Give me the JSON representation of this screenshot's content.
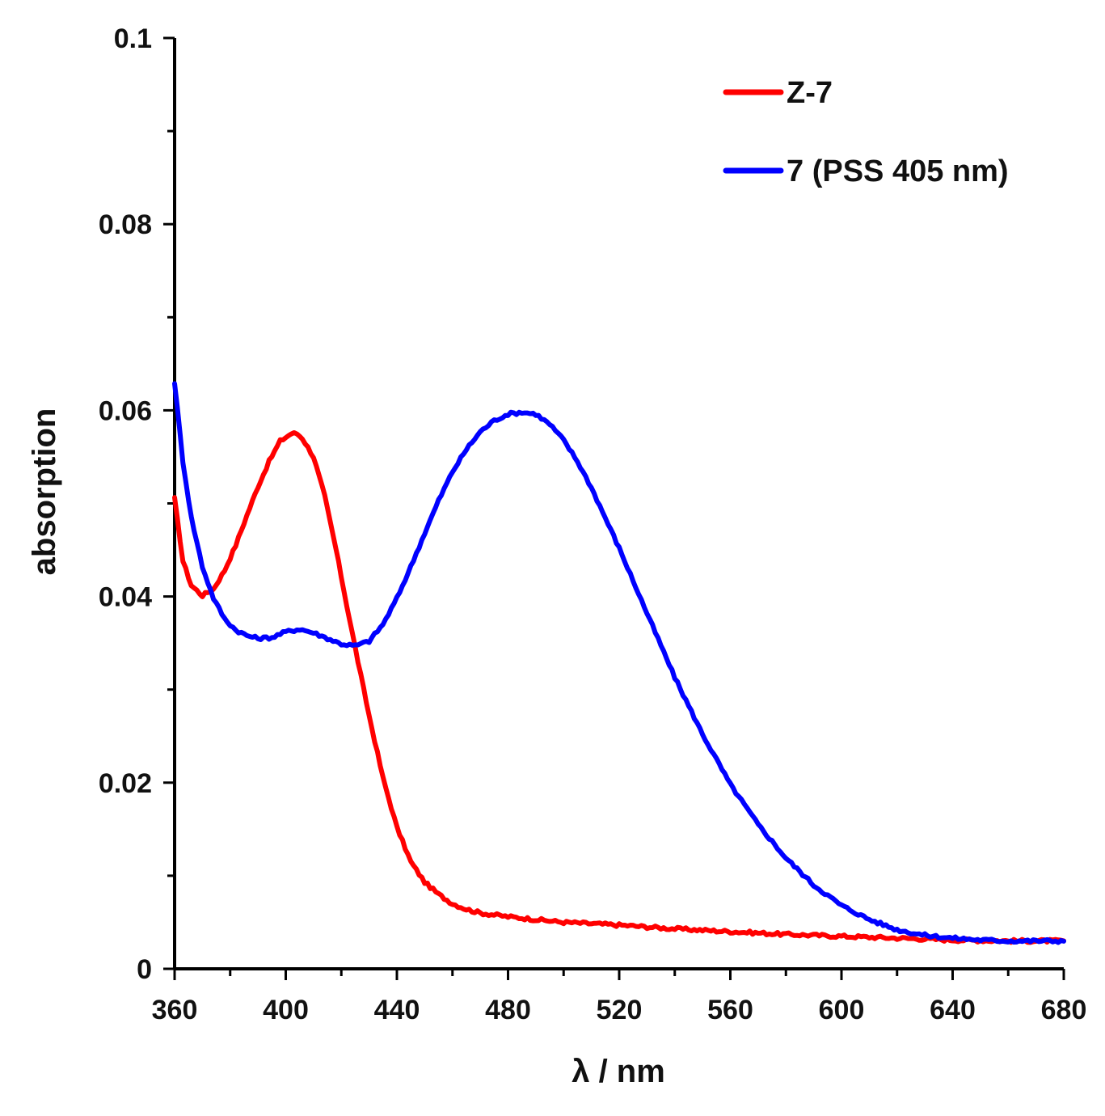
{
  "chart_data": {
    "type": "line",
    "title": "",
    "xlabel": "λ / nm",
    "ylabel": "absorption",
    "xlim": [
      360,
      680
    ],
    "ylim": [
      0,
      0.1
    ],
    "x_ticks": [
      "360",
      "400",
      "440",
      "480",
      "520",
      "560",
      "600",
      "640",
      "680"
    ],
    "x_tick_values": [
      360,
      400,
      440,
      480,
      520,
      560,
      600,
      640,
      680
    ],
    "x_minor_step": 20,
    "y_ticks": [
      "0",
      "0.02",
      "0.04",
      "0.06",
      "0.08",
      "0.1"
    ],
    "y_tick_values": [
      0,
      0.02,
      0.04,
      0.06,
      0.08,
      0.1
    ],
    "y_minor_step": 0.01,
    "grid": false,
    "legend_position": "top-right",
    "series": [
      {
        "name": "Z-7",
        "color": "#ff0000",
        "x": [
          360,
          363,
          366,
          370,
          374,
          378,
          382,
          386,
          390,
          394,
          398,
          402,
          404,
          406,
          410,
          414,
          418,
          422,
          426,
          430,
          435,
          440,
          445,
          450,
          455,
          460,
          465,
          470,
          480,
          490,
          500,
          520,
          540,
          560,
          580,
          600,
          620,
          640,
          660,
          680
        ],
        "y": [
          0.0505,
          0.0438,
          0.0412,
          0.0401,
          0.0408,
          0.0428,
          0.0455,
          0.0487,
          0.0518,
          0.0545,
          0.0567,
          0.0575,
          0.0575,
          0.057,
          0.055,
          0.0508,
          0.0452,
          0.039,
          0.033,
          0.0272,
          0.0205,
          0.0152,
          0.0115,
          0.0093,
          0.008,
          0.007,
          0.0064,
          0.006,
          0.0056,
          0.0053,
          0.005,
          0.0047,
          0.0043,
          0.004,
          0.0037,
          0.0035,
          0.0033,
          0.0031,
          0.003,
          0.003
        ]
      },
      {
        "name": "7 (PSS 405 nm)",
        "color": "#0000ff",
        "x": [
          360,
          363,
          366,
          370,
          374,
          378,
          382,
          386,
          390,
          395,
          400,
          405,
          410,
          415,
          420,
          425,
          430,
          435,
          440,
          445,
          450,
          455,
          460,
          465,
          470,
          475,
          480,
          485,
          490,
          495,
          500,
          505,
          510,
          520,
          530,
          540,
          550,
          560,
          570,
          580,
          590,
          600,
          610,
          620,
          630,
          640,
          650,
          660,
          670,
          680
        ],
        "y": [
          0.063,
          0.0545,
          0.0485,
          0.0432,
          0.0398,
          0.0376,
          0.0364,
          0.0358,
          0.0355,
          0.0356,
          0.0362,
          0.0365,
          0.0361,
          0.0355,
          0.0349,
          0.0347,
          0.0352,
          0.037,
          0.0398,
          0.0432,
          0.0468,
          0.0503,
          0.0534,
          0.0558,
          0.0577,
          0.0589,
          0.0596,
          0.0598,
          0.0596,
          0.0585,
          0.0568,
          0.0545,
          0.0517,
          0.0452,
          0.0382,
          0.0313,
          0.0252,
          0.0198,
          0.0155,
          0.0119,
          0.009,
          0.0068,
          0.0053,
          0.0042,
          0.0036,
          0.0033,
          0.0031,
          0.003,
          0.003,
          0.003
        ]
      }
    ]
  }
}
